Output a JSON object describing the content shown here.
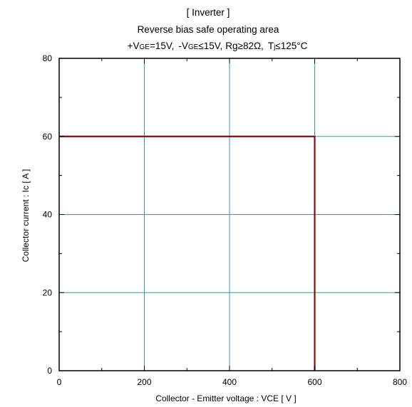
{
  "chart_data": {
    "type": "line",
    "title_lines": [
      "[ Inverter ]",
      "Reverse bias safe operating area"
    ],
    "conditions": {
      "vge_pos": {
        "prefix": "+V",
        "sub": "GE",
        "rest": "=15V,"
      },
      "vge_neg": {
        "prefix": "-V",
        "sub": "GE",
        "rest": "≤15V,"
      },
      "rg": {
        "prefix": "R",
        "sub": "g",
        "rest": "≥82Ω,"
      },
      "tj": {
        "prefix": "T",
        "sub": "j",
        "rest": "≤125°C"
      }
    },
    "xlabel": "Collector - Emitter voltage  :  VCE  [ V ]",
    "ylabel": "Collector current  : Ic  [ A ]",
    "xlim": [
      0,
      800
    ],
    "ylim": [
      0,
      80
    ],
    "x_ticks": [
      0,
      200,
      400,
      600,
      800
    ],
    "y_ticks": [
      0,
      20,
      40,
      60,
      80
    ],
    "x_minor_step": 100,
    "y_minor_step": 10,
    "grid": true,
    "grid_color": "#3a9a9a",
    "series": [
      {
        "color": "#7a1010",
        "points": [
          [
            0,
            60
          ],
          [
            600,
            60
          ],
          [
            600,
            0
          ]
        ]
      }
    ]
  }
}
